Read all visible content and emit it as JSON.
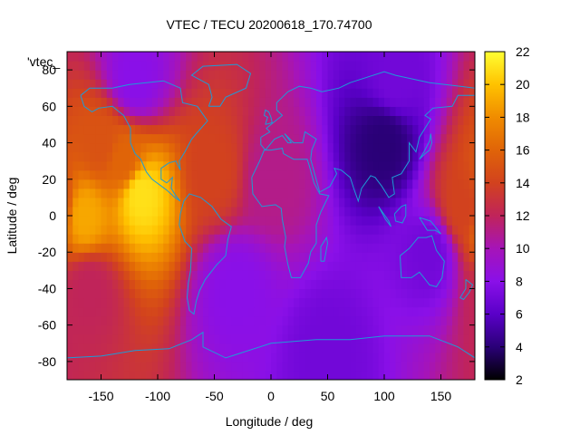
{
  "chart_data": {
    "type": "heatmap",
    "title": "VTEC / TECU 20200618_170.74700",
    "xlabel": "Longitude / deg",
    "ylabel": "Latitude / deg",
    "legend_label": "'vtec_",
    "xlim": [
      -180,
      180
    ],
    "ylim": [
      -90,
      90
    ],
    "x_ticks": [
      -150,
      -100,
      -50,
      0,
      50,
      100,
      150
    ],
    "y_ticks": [
      -80,
      -60,
      -40,
      -20,
      0,
      20,
      40,
      60,
      80
    ],
    "colorbar": {
      "min": 2,
      "max": 22,
      "ticks": [
        2,
        4,
        6,
        8,
        10,
        12,
        14,
        16,
        18,
        20,
        22
      ],
      "palette": [
        "#000000",
        "#2a0077",
        "#5a00c8",
        "#8a10e8",
        "#a614b8",
        "#c0245a",
        "#d2421e",
        "#e06408",
        "#f08c00",
        "#ffc200",
        "#ffff33"
      ]
    },
    "grid": false,
    "colors": {
      "coastline": "#1e9bd7"
    },
    "field_features": [
      {
        "lon": -115,
        "lat": 12,
        "value": 21
      },
      {
        "lon": -165,
        "lat": 0,
        "value": 19
      },
      {
        "lon": -130,
        "lat": 30,
        "value": 16
      },
      {
        "lon": -150,
        "lat": 40,
        "value": 15
      },
      {
        "lon": -50,
        "lat": 25,
        "value": 14
      },
      {
        "lon": 0,
        "lat": 20,
        "value": 11
      },
      {
        "lon": 100,
        "lat": 40,
        "value": 4
      },
      {
        "lon": 140,
        "lat": -20,
        "value": 7
      },
      {
        "lon": 170,
        "lat": 5,
        "value": 14
      },
      {
        "lon": -160,
        "lat": -40,
        "value": 12
      },
      {
        "lon": -30,
        "lat": -40,
        "value": 8
      },
      {
        "lon": 50,
        "lat": -75,
        "value": 7
      },
      {
        "lon": -120,
        "lat": 75,
        "value": 8
      },
      {
        "lon": 110,
        "lat": 75,
        "value": 7
      }
    ]
  }
}
